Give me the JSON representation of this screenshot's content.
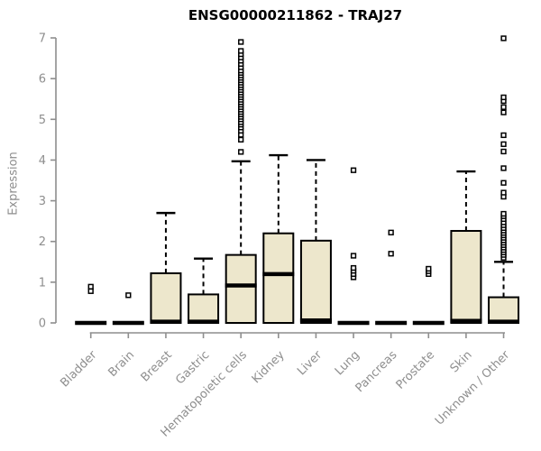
{
  "title": "ENSG00000211862 - TRAJ27",
  "chart_data": {
    "type": "boxplot",
    "title": "ENSG00000211862 - TRAJ27",
    "xlabel": "",
    "ylabel": "Expression",
    "ylim": [
      0,
      7
    ],
    "yticks": [
      0,
      1,
      2,
      3,
      4,
      5,
      6,
      7
    ],
    "grid": false,
    "legend": false,
    "colors": {
      "box_fill": "#EDE7CC",
      "box_stroke": "#000000",
      "median_stroke": "#000000",
      "whisker_stroke": "#000000",
      "outlier_stroke": "#000000",
      "outlier_fill": "#ffffff",
      "axis": "#8e8e8e",
      "tick_label": "#8e8e8e",
      "title_color": "#000000"
    },
    "categories": [
      "Bladder",
      "Brain",
      "Breast",
      "Gastric",
      "Hematopoietic cells",
      "Kidney",
      "Liver",
      "Lung",
      "Pancreas",
      "Prostate",
      "Skin",
      "Unknown / Other"
    ],
    "series": [
      {
        "name": "Bladder",
        "q1": 0,
        "median": 0,
        "q3": 0,
        "whisker_low": 0,
        "whisker_high": 0,
        "outliers": [
          0.78,
          0.89
        ]
      },
      {
        "name": "Brain",
        "q1": 0,
        "median": 0,
        "q3": 0,
        "whisker_low": 0,
        "whisker_high": 0,
        "outliers": [
          0.68
        ]
      },
      {
        "name": "Breast",
        "q1": 0,
        "median": 0.03,
        "q3": 1.22,
        "whisker_low": 0,
        "whisker_high": 2.7,
        "outliers": []
      },
      {
        "name": "Gastric",
        "q1": 0,
        "median": 0.03,
        "q3": 0.7,
        "whisker_low": 0,
        "whisker_high": 1.58,
        "outliers": []
      },
      {
        "name": "Hematopoietic cells",
        "q1": 0,
        "median": 0.92,
        "q3": 1.67,
        "whisker_low": 0,
        "whisker_high": 3.97,
        "outliers": [
          4.2,
          4.5,
          4.62,
          4.72,
          4.8,
          4.87,
          4.93,
          5.0,
          5.06,
          5.12,
          5.18,
          5.24,
          5.3,
          5.36,
          5.42,
          5.48,
          5.54,
          5.6,
          5.66,
          5.72,
          5.78,
          5.84,
          5.9,
          5.96,
          6.02,
          6.08,
          6.14,
          6.2,
          6.28,
          6.36,
          6.44,
          6.52,
          6.6,
          6.68,
          6.9
        ]
      },
      {
        "name": "Kidney",
        "q1": 0,
        "median": 1.2,
        "q3": 2.2,
        "whisker_low": 0,
        "whisker_high": 4.12,
        "outliers": []
      },
      {
        "name": "Liver",
        "q1": 0,
        "median": 0.06,
        "q3": 2.02,
        "whisker_low": 0,
        "whisker_high": 4.0,
        "outliers": []
      },
      {
        "name": "Lung",
        "q1": 0,
        "median": 0,
        "q3": 0,
        "whisker_low": 0,
        "whisker_high": 0,
        "outliers": [
          1.12,
          1.2,
          1.28,
          1.35,
          1.65,
          3.75
        ]
      },
      {
        "name": "Pancreas",
        "q1": 0,
        "median": 0,
        "q3": 0,
        "whisker_low": 0,
        "whisker_high": 0,
        "outliers": [
          1.7,
          2.22
        ]
      },
      {
        "name": "Prostate",
        "q1": 0,
        "median": 0,
        "q3": 0,
        "whisker_low": 0,
        "whisker_high": 0,
        "outliers": [
          1.2,
          1.27,
          1.33
        ]
      },
      {
        "name": "Skin",
        "q1": 0,
        "median": 0.05,
        "q3": 2.26,
        "whisker_low": 0,
        "whisker_high": 3.72,
        "outliers": []
      },
      {
        "name": "Unknown / Other",
        "q1": 0,
        "median": 0.03,
        "q3": 0.63,
        "whisker_low": 0,
        "whisker_high": 1.5,
        "outliers": [
          1.6,
          1.67,
          1.73,
          1.79,
          1.85,
          1.91,
          1.97,
          2.03,
          2.09,
          2.15,
          2.21,
          2.27,
          2.33,
          2.4,
          2.47,
          2.55,
          2.62,
          2.68,
          3.1,
          3.2,
          3.44,
          3.8,
          4.21,
          4.39,
          4.61,
          5.17,
          5.3,
          5.45,
          5.54,
          6.99
        ]
      }
    ]
  }
}
